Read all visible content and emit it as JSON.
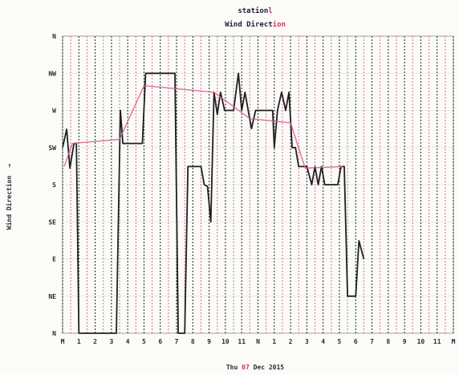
{
  "chart_data": {
    "type": "line",
    "title_prefix": "station",
    "title_accent": "l",
    "subtitle_prefix": "Wind Direct",
    "subtitle_accent": "ion",
    "ylabel": "Wind Direction",
    "ylabel_arrow": "→",
    "xlabel_parts": [
      "Thu ",
      "07",
      " Dec 2015"
    ],
    "y_ticks": [
      "N",
      "NE",
      "E",
      "SE",
      "S",
      "SW",
      "W",
      "NW",
      "N"
    ],
    "y_range_deg": [
      0,
      360
    ],
    "x_range_hours": [
      0,
      24
    ],
    "x_tick_labels": [
      "M",
      "1",
      "2",
      "3",
      "4",
      "5",
      "6",
      "7",
      "8",
      "9",
      "10",
      "11",
      "N",
      "1",
      "2",
      "3",
      "4",
      "5",
      "6",
      "7",
      "8",
      "9",
      "10",
      "11",
      "M"
    ],
    "grid": true,
    "series": [
      {
        "color": "#202020",
        "points": [
          [
            0.0,
            225
          ],
          [
            0.25,
            247
          ],
          [
            0.45,
            200
          ],
          [
            0.7,
            230
          ],
          [
            0.85,
            230
          ],
          [
            1.0,
            0
          ],
          [
            3.1,
            0
          ],
          [
            3.3,
            0
          ],
          [
            3.55,
            270
          ],
          [
            3.7,
            230
          ],
          [
            4.9,
            230
          ],
          [
            5.1,
            315
          ],
          [
            6.9,
            315
          ],
          [
            7.1,
            0
          ],
          [
            7.5,
            0
          ],
          [
            7.7,
            202
          ],
          [
            8.5,
            202
          ],
          [
            8.7,
            180
          ],
          [
            8.9,
            178
          ],
          [
            9.1,
            135
          ],
          [
            9.3,
            292
          ],
          [
            9.5,
            265
          ],
          [
            9.7,
            292
          ],
          [
            9.95,
            270
          ],
          [
            10.5,
            270
          ],
          [
            10.8,
            315
          ],
          [
            11.0,
            270
          ],
          [
            11.2,
            292
          ],
          [
            11.4,
            270
          ],
          [
            11.6,
            248
          ],
          [
            11.85,
            270
          ],
          [
            12.9,
            270
          ],
          [
            13.0,
            225
          ],
          [
            13.2,
            270
          ],
          [
            13.45,
            292
          ],
          [
            13.7,
            270
          ],
          [
            13.9,
            292
          ],
          [
            14.1,
            225
          ],
          [
            14.3,
            225
          ],
          [
            14.5,
            202
          ],
          [
            15.0,
            202
          ],
          [
            15.3,
            180
          ],
          [
            15.5,
            202
          ],
          [
            15.7,
            180
          ],
          [
            15.9,
            202
          ],
          [
            16.1,
            180
          ],
          [
            16.9,
            180
          ],
          [
            17.1,
            202
          ],
          [
            17.3,
            202
          ],
          [
            17.5,
            45
          ],
          [
            18.0,
            45
          ],
          [
            18.2,
            112
          ],
          [
            18.5,
            90
          ]
        ]
      },
      {
        "color": "#d85a8c",
        "points": [
          [
            0.1,
            202
          ],
          [
            0.6,
            230
          ],
          [
            3.5,
            235
          ],
          [
            5.0,
            300
          ],
          [
            9.3,
            292
          ],
          [
            11.5,
            260
          ],
          [
            14.0,
            255
          ],
          [
            14.9,
            200
          ],
          [
            17.2,
            202
          ]
        ]
      }
    ]
  }
}
